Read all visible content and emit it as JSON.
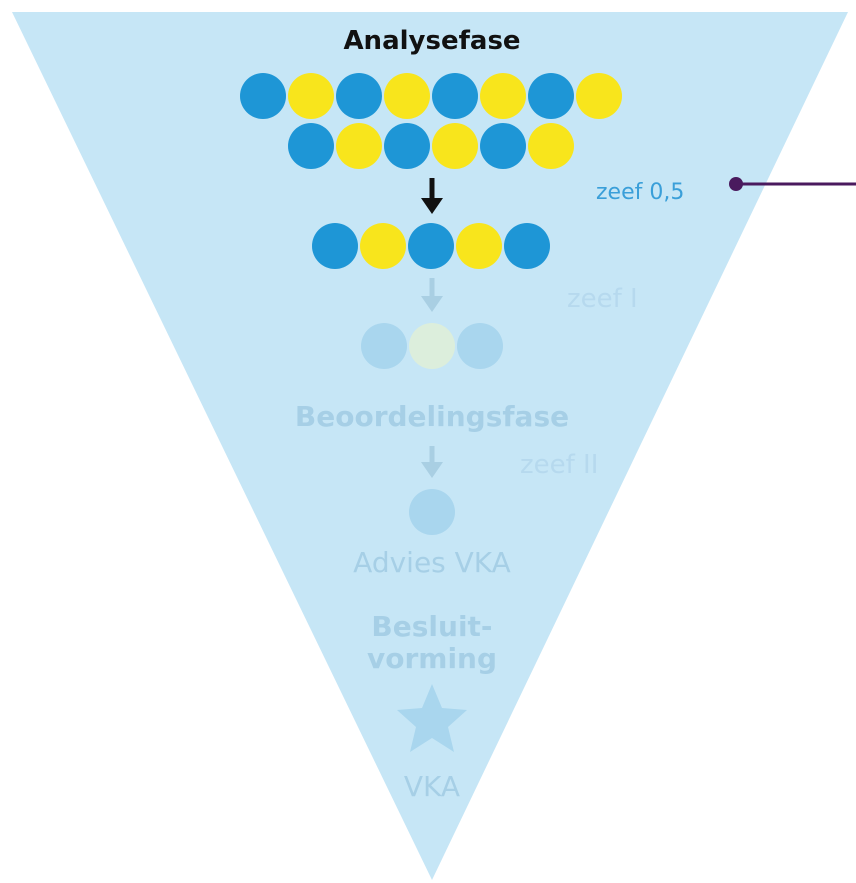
{
  "diagram": {
    "phases": {
      "analysis_title": "Analysefase",
      "assessment_title": "Beoordelingsfase",
      "advice_label": "Advies VKA",
      "decision_title_line1": "Besluit-",
      "decision_title_line2": "vorming",
      "final_label": "VKA"
    },
    "sieves": {
      "sieve_05": "zeef 0,5",
      "sieve_1": "zeef I",
      "sieve_2": "zeef II"
    },
    "rows": {
      "row1": [
        "blue",
        "yellow",
        "blue",
        "yellow",
        "blue",
        "yellow",
        "blue",
        "yellow"
      ],
      "row2": [
        "blue",
        "yellow",
        "blue",
        "yellow",
        "blue",
        "yellow"
      ],
      "row3": [
        "blue",
        "yellow",
        "blue",
        "yellow",
        "blue"
      ],
      "row4": [
        "fblue",
        "fyellow",
        "fblue"
      ],
      "row5": [
        "fblue"
      ]
    },
    "colors": {
      "funnel": "#c6e6f6",
      "blue": "#1e96d6",
      "yellow": "#f8e51c",
      "pointer": "#4a1a5e",
      "text_active": "#111111",
      "text_faded": "#a6cfe6"
    }
  }
}
